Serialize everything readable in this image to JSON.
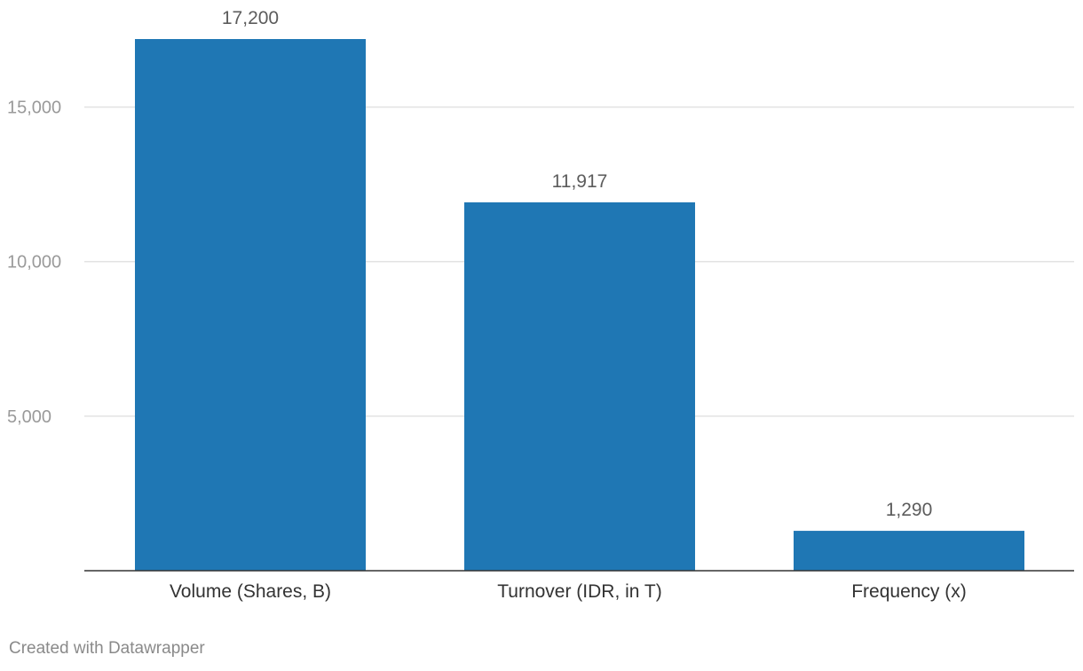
{
  "chart_data": {
    "type": "bar",
    "categories": [
      "Volume (Shares, B)",
      "Turnover (IDR, in T)",
      "Frequency (x)"
    ],
    "values": [
      17200,
      11917,
      1290
    ],
    "value_labels": [
      "17,200",
      "11,917",
      "1,290"
    ],
    "ylim": [
      0,
      17200
    ],
    "yticks": [
      5000,
      10000,
      15000
    ],
    "ytick_labels": [
      "5,000",
      "10,000",
      "15,000"
    ],
    "grid": true,
    "bar_color": "#1f77b4",
    "title": "",
    "xlabel": "",
    "ylabel": ""
  },
  "footer": {
    "credit": "Created with Datawrapper"
  }
}
